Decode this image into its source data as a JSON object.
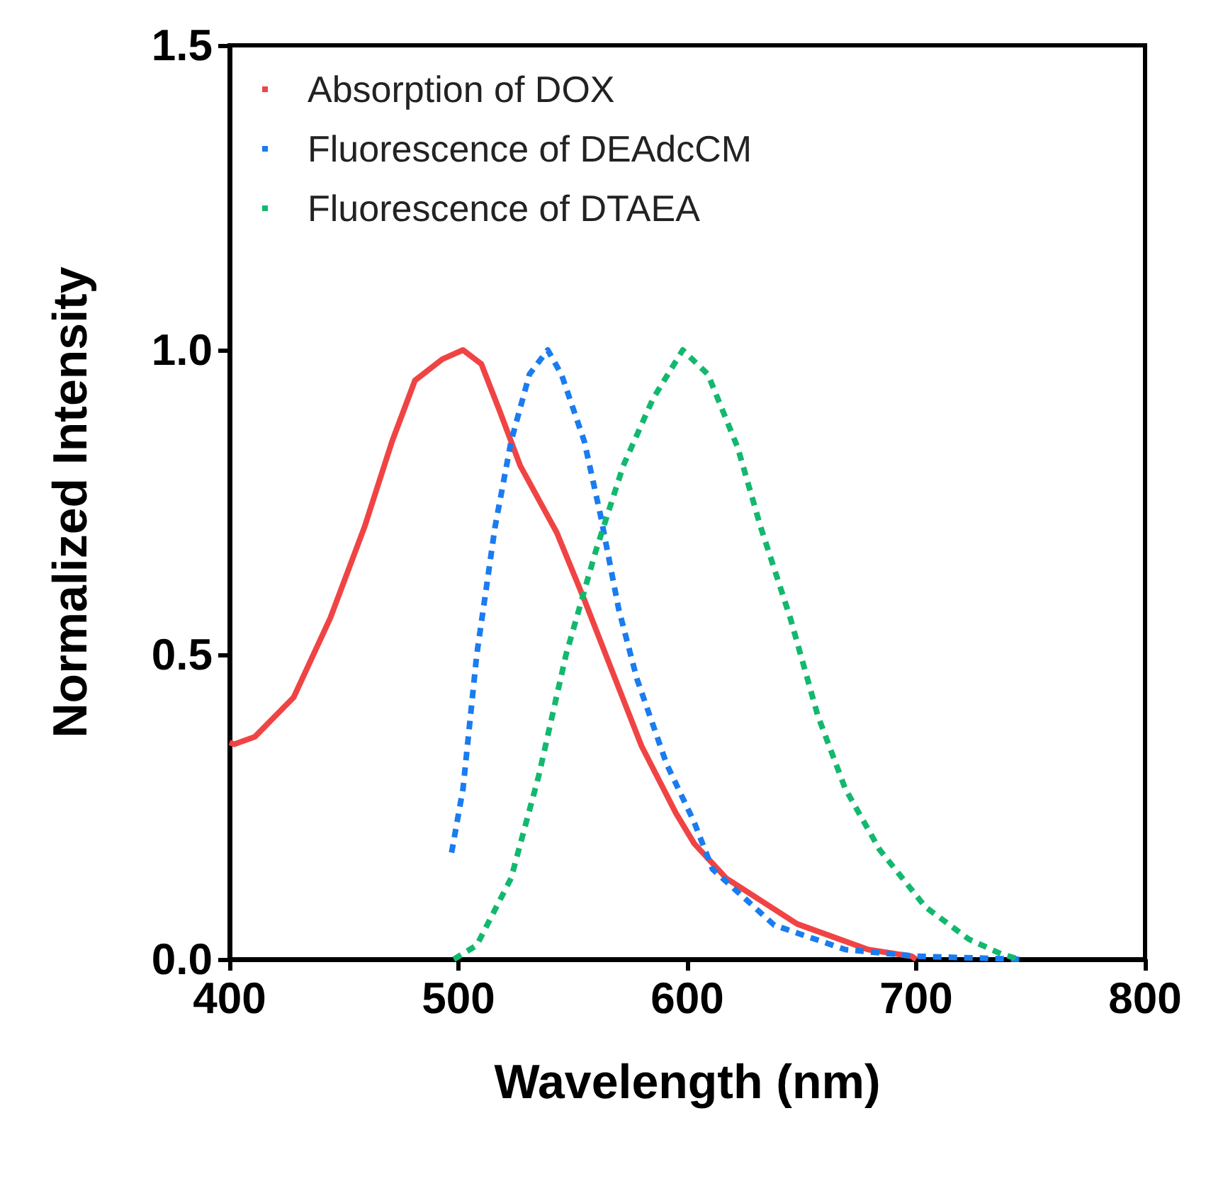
{
  "chart_data": {
    "type": "line",
    "xlabel": "Wavelength (nm)",
    "ylabel": "Normalized Intensity",
    "xlim": [
      400,
      800
    ],
    "xticks": [
      400,
      500,
      600,
      700,
      800
    ],
    "ylim": [
      0,
      1.5
    ],
    "yticks": [
      {
        "value": 0,
        "label": "0.0"
      },
      {
        "value": 0.5,
        "label": "0.5"
      },
      {
        "value": 1,
        "label": "1.0"
      },
      {
        "value": 1.5,
        "label": "1.5"
      }
    ],
    "grid": false,
    "legend": "top left",
    "marker": "none",
    "series": [
      {
        "name": "Absorption of DOX",
        "color": "#f04444",
        "line_style": "solid",
        "x": [
          400,
          402,
          411,
          428,
          444,
          459,
          471,
          481,
          493,
          502,
          510,
          518,
          527,
          543,
          555,
          568,
          580,
          595,
          603,
          617,
          648,
          679,
          698,
          700
        ],
        "values": [
          0.356,
          0.353,
          0.365,
          0.43,
          0.56,
          0.71,
          0.85,
          0.95,
          0.985,
          1.0,
          0.977,
          0.9,
          0.81,
          0.7,
          0.59,
          0.465,
          0.35,
          0.24,
          0.19,
          0.133,
          0.058,
          0.016,
          0.005,
          0
        ]
      },
      {
        "name": "Fluorescence of DEAdcCM",
        "color": "#1a7cf0",
        "line_style": "dashed",
        "x": [
          497,
          502,
          508,
          516,
          523,
          531,
          539,
          545,
          555,
          562,
          570,
          578,
          591,
          603,
          611,
          638,
          669,
          700,
          745
        ],
        "values": [
          0.175,
          0.28,
          0.5,
          0.71,
          0.85,
          0.96,
          1.0,
          0.96,
          0.85,
          0.73,
          0.575,
          0.46,
          0.32,
          0.225,
          0.148,
          0.056,
          0.016,
          0.005,
          0
        ]
      },
      {
        "name": "Fluorescence of DTAEA",
        "color": "#12b86e",
        "line_style": "dashed",
        "x": [
          498,
          508,
          523,
          535,
          547,
          560,
          572,
          585,
          598,
          609,
          622,
          632,
          645,
          657,
          669,
          684,
          704,
          723,
          737,
          745
        ],
        "values": [
          0,
          0.023,
          0.133,
          0.3,
          0.5,
          0.67,
          0.81,
          0.92,
          1.0,
          0.96,
          0.84,
          0.71,
          0.56,
          0.4,
          0.28,
          0.18,
          0.086,
          0.033,
          0.009,
          0
        ]
      }
    ]
  }
}
